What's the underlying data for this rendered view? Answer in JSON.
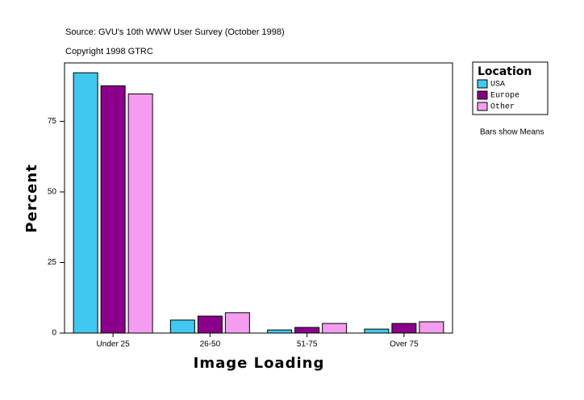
{
  "chart_data": {
    "type": "bar",
    "title": "Source: GVU's 10th WWW User Survey (October 1998)",
    "subtitle": "Copyright 1998 GTRC",
    "x_label": "Image Loading",
    "y_label": "Percent",
    "categories": [
      "Under 25",
      "26-50",
      "51-75",
      "Over 75"
    ],
    "series": [
      {
        "name": "USA",
        "color": "#40c8f0",
        "values": [
          92.2,
          4.6,
          1.1,
          1.4
        ]
      },
      {
        "name": "Europe",
        "color": "#8b008b",
        "values": [
          87.6,
          6.0,
          2.0,
          3.4
        ]
      },
      {
        "name": "Other",
        "color": "#f49cf0",
        "values": [
          84.7,
          7.2,
          3.4,
          4.0
        ]
      }
    ],
    "ylim": [
      0,
      95.7
    ],
    "yticks": [
      0,
      25,
      50,
      75
    ],
    "legend_title": "Location",
    "legend_position": "right",
    "note": "Bars show Means"
  }
}
